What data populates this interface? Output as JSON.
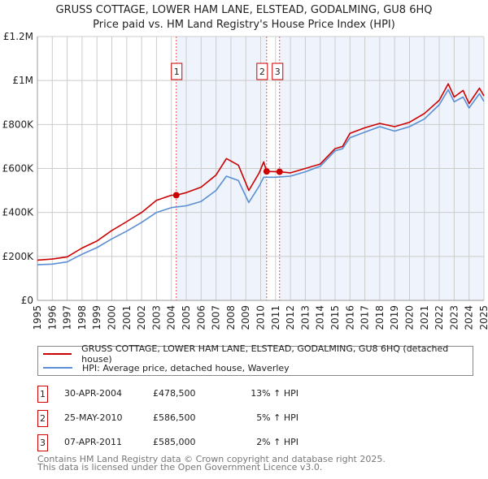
{
  "chart_data": {
    "type": "line",
    "title": "GRUSS COTTAGE, LOWER HAM LANE, ELSTEAD, GODALMING, GU8 6HQ",
    "subtitle": "Price paid vs. HM Land Registry's House Price Index (HPI)",
    "xlim": [
      1995,
      2025
    ],
    "ylim": [
      0,
      1200000
    ],
    "y_ticks": [
      0,
      200000,
      400000,
      600000,
      800000,
      1000000,
      1200000
    ],
    "y_tick_labels": [
      "£0",
      "£200K",
      "£400K",
      "£600K",
      "£800K",
      "£1M",
      "£1.2M"
    ],
    "x_tick_labels": [
      "1995",
      "1996",
      "1997",
      "1998",
      "1999",
      "2000",
      "2001",
      "2002",
      "2003",
      "2004",
      "2005",
      "2006",
      "2007",
      "2008",
      "2009",
      "2010",
      "2011",
      "2012",
      "2013",
      "2014",
      "2015",
      "2016",
      "2017",
      "2018",
      "2019",
      "2020",
      "2021",
      "2022",
      "2023",
      "2024",
      "2025"
    ],
    "grid": true,
    "series": [
      {
        "name": "GRUSS COTTAGE, LOWER HAM LANE, ELSTEAD, GODALMING, GU8 6HQ (detached house)",
        "color": "#cc0000",
        "x": [
          1995,
          1996,
          1997,
          1998,
          1999,
          2000,
          2001,
          2002,
          2003,
          2004,
          2004.33,
          2005,
          2006,
          2007,
          2007.7,
          2008.5,
          2009.2,
          2009.9,
          2010.2,
          2010.4,
          2011.27,
          2012,
          2013,
          2014,
          2015,
          2015.5,
          2016,
          2017,
          2018,
          2019,
          2020,
          2021,
          2022,
          2022.6,
          2023,
          2023.6,
          2024,
          2024.7,
          2025
        ],
        "y": [
          183000,
          188000,
          198000,
          238000,
          270000,
          318000,
          358000,
          400000,
          455000,
          478000,
          478500,
          490000,
          515000,
          570000,
          645000,
          615000,
          500000,
          580000,
          630000,
          586500,
          585000,
          580000,
          600000,
          620000,
          690000,
          700000,
          760000,
          785000,
          805000,
          790000,
          810000,
          850000,
          910000,
          985000,
          925000,
          955000,
          895000,
          965000,
          930000
        ]
      },
      {
        "name": "HPI: Average price, detached house, Waverley",
        "color": "#5b8fd4",
        "x": [
          1995,
          1996,
          1997,
          1998,
          1999,
          2000,
          2001,
          2002,
          2003,
          2004,
          2005,
          2006,
          2007,
          2007.7,
          2008.5,
          2009.2,
          2009.9,
          2010.2,
          2011,
          2012,
          2013,
          2014,
          2015,
          2015.5,
          2016,
          2017,
          2018,
          2019,
          2020,
          2021,
          2022,
          2022.6,
          2023,
          2023.6,
          2024,
          2024.7,
          2025
        ],
        "y": [
          162000,
          165000,
          175000,
          210000,
          240000,
          280000,
          315000,
          355000,
          400000,
          422000,
          430000,
          450000,
          500000,
          565000,
          545000,
          445000,
          520000,
          560000,
          560000,
          565000,
          585000,
          610000,
          680000,
          690000,
          740000,
          765000,
          790000,
          770000,
          790000,
          825000,
          890000,
          958000,
          903000,
          925000,
          875000,
          940000,
          905000
        ]
      }
    ],
    "sales": [
      {
        "label": "1",
        "x": 2004.33,
        "date": "30-APR-2004",
        "price": "£478,500",
        "value": 478500,
        "hpi": "13% ↑ HPI"
      },
      {
        "label": "2",
        "x": 2010.4,
        "date": "25-MAY-2010",
        "price": "£586,500",
        "value": 586500,
        "hpi": "5% ↑ HPI"
      },
      {
        "label": "3",
        "x": 2011.27,
        "date": "07-APR-2011",
        "price": "£585,000",
        "value": 585000,
        "hpi": "2% ↑ HPI"
      }
    ],
    "legend_placement": "below"
  },
  "footer": {
    "line1": "Contains HM Land Registry data © Crown copyright and database right 2025.",
    "line2": "This data is licensed under the Open Government Licence v3.0."
  }
}
